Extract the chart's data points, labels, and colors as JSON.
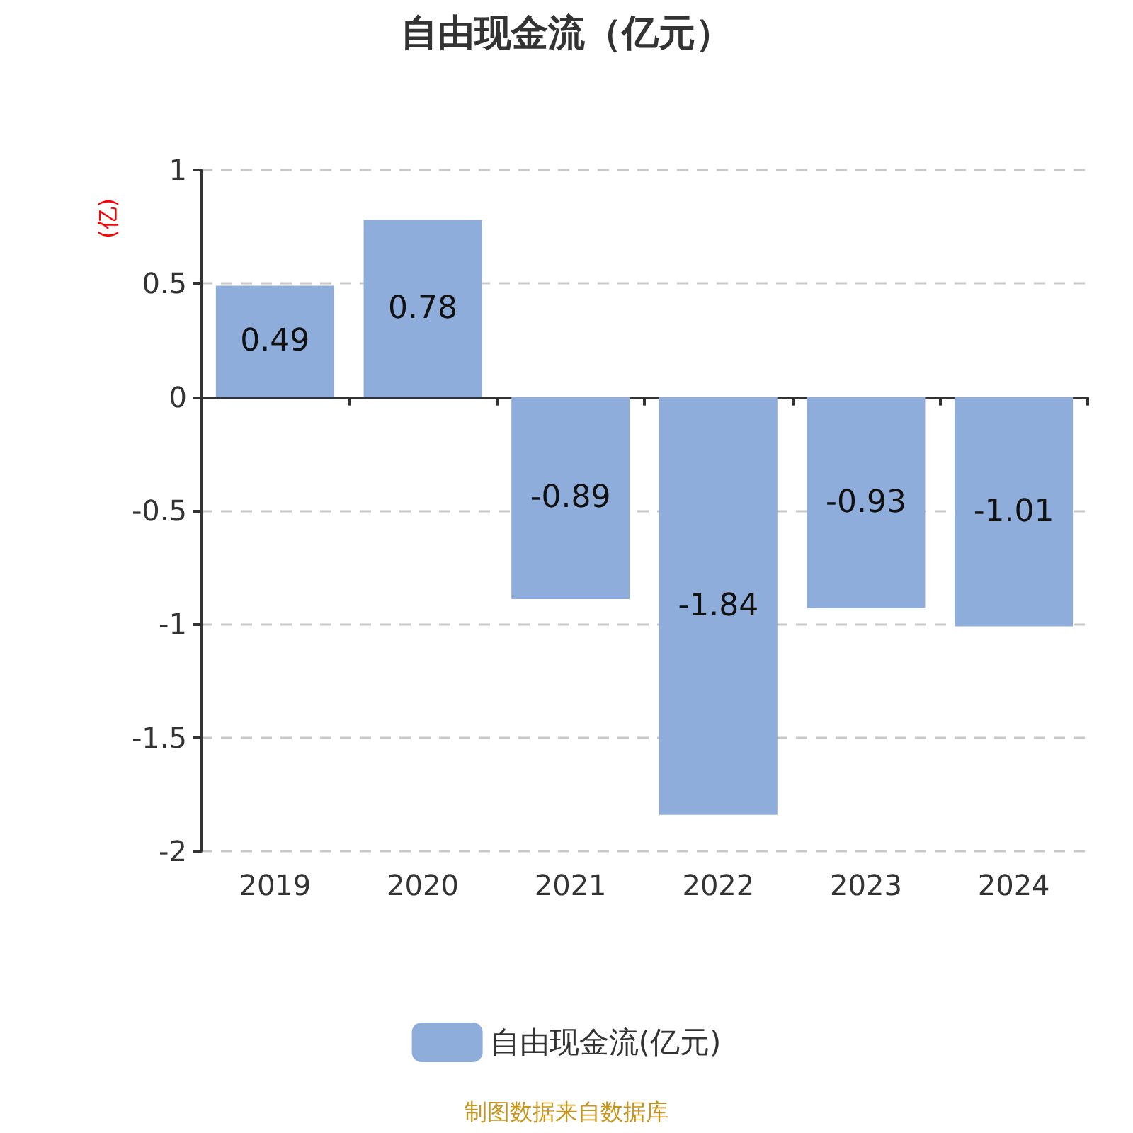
{
  "chart_data": {
    "type": "bar",
    "title": "自由现金流（亿元）",
    "ylabel": "(亿)",
    "categories": [
      "2019",
      "2020",
      "2021",
      "2022",
      "2023",
      "2024"
    ],
    "series": [
      {
        "name": "自由现金流(亿元)",
        "color": "#8eadda",
        "values": [
          0.49,
          0.78,
          -0.89,
          -1.84,
          -0.93,
          -1.01
        ]
      }
    ],
    "ylim": [
      -2,
      1
    ],
    "yticks": [
      -2,
      -1.5,
      -1,
      -0.5,
      0,
      0.5,
      1
    ],
    "grid": "y",
    "legend": "bottom",
    "data_labels": true,
    "annotations": [
      "制图数据来自数据库"
    ]
  }
}
